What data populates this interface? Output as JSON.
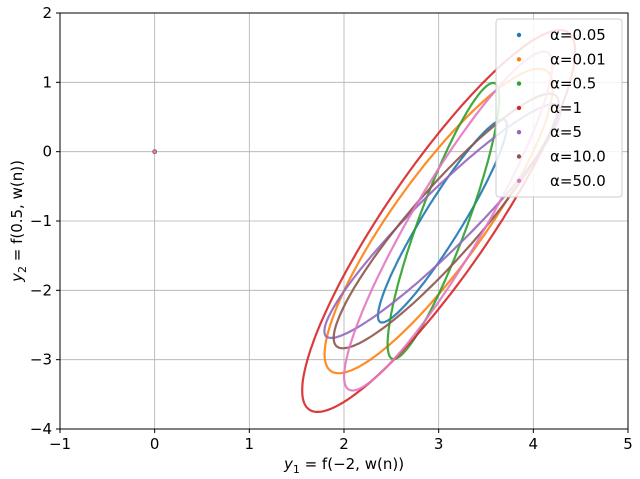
{
  "chart_data": {
    "type": "scatter",
    "xlabel_parts": {
      "var": "y",
      "sub": "1",
      "expr": " = f(−2, w(n))"
    },
    "ylabel_parts": {
      "var": "y",
      "sub": "2",
      "expr": " = f(0.5, w(n))"
    },
    "xlim": [
      -1,
      5
    ],
    "ylim": [
      -4,
      2
    ],
    "xticks": [
      "−1",
      "0",
      "1",
      "2",
      "3",
      "4",
      "5"
    ],
    "yticks": [
      "−4",
      "−3",
      "−2",
      "−1",
      "0",
      "1",
      "2"
    ],
    "grid": true,
    "legend_position": "top-right",
    "origin_point": {
      "x": 0,
      "y": 0
    },
    "series": [
      {
        "name": "α=0.05",
        "color": "#1f77b4",
        "cx": 3.04,
        "cy": -1.0,
        "a": 1.6,
        "b": 0.22,
        "angle": 66
      },
      {
        "name": "α=0.01",
        "color": "#ff7f0e",
        "cx": 3.0,
        "cy": -1.0,
        "a": 2.45,
        "b": 0.52,
        "angle": 63
      },
      {
        "name": "α=0.5",
        "color": "#2ca02c",
        "cx": 3.05,
        "cy": -1.0,
        "a": 2.06,
        "b": 0.26,
        "angle": 75
      },
      {
        "name": "α=1",
        "color": "#d62728",
        "cx": 3.0,
        "cy": -1.0,
        "a": 3.05,
        "b": 0.6,
        "angle": 64
      },
      {
        "name": "α=5",
        "color": "#9467bd",
        "cx": 3.04,
        "cy": -1.0,
        "a": 2.07,
        "b": 0.34,
        "angle": 54
      },
      {
        "name": "α=10.0",
        "color": "#8c564b",
        "cx": 3.08,
        "cy": -1.0,
        "a": 2.15,
        "b": 0.4,
        "angle": 58
      },
      {
        "name": "α=50.0",
        "color": "#e377c2",
        "cx": 3.1,
        "cy": -1.0,
        "a": 2.65,
        "b": 0.4,
        "angle": 67
      }
    ]
  }
}
